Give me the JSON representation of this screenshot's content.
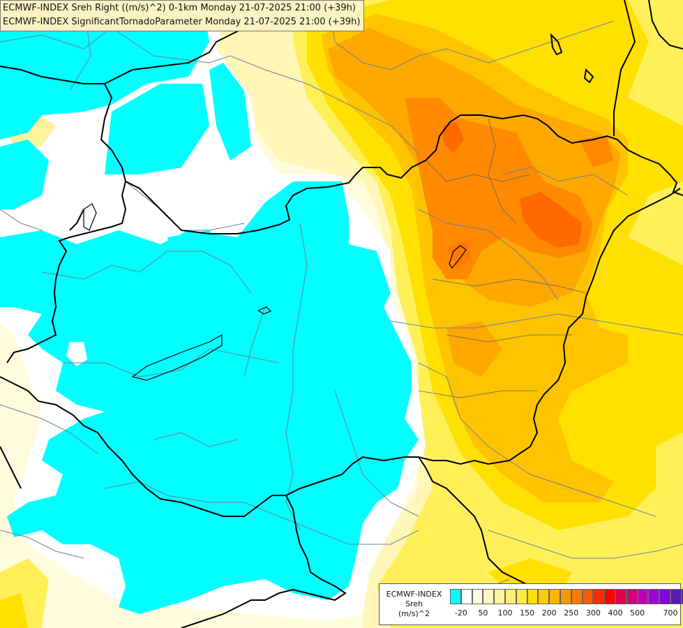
{
  "title": {
    "line1": "ECMWF-INDEX Sreh Right ((m/s)^2) 0-1km Monday 21-07-2025 21:00 (+39h)",
    "line2": "ECMWF-INDEX SignificantTornadoParameter Monday 21-07-2025 21:00 (+39h)"
  },
  "legend": {
    "source": "ECMWF-INDEX",
    "variable": "Sreh",
    "unit": "(m/s)^2",
    "colors": [
      "#00ffff",
      "#ffffff",
      "#fffbe0",
      "#fff6c0",
      "#fff3a0",
      "#fff072",
      "#ffec3c",
      "#ffe000",
      "#ffcc00",
      "#ffb400",
      "#ff9800",
      "#ff7a00",
      "#ff5a00",
      "#ff2a00",
      "#ff0000",
      "#e0004a",
      "#d0007c",
      "#c000b0",
      "#a000d8",
      "#8000e0",
      "#5a1ab4",
      "#2a1a9a",
      "#000078"
    ],
    "ticks": [
      "-20",
      "50",
      "100",
      "150",
      "200",
      "250",
      "300",
      "400",
      "500",
      "700"
    ]
  },
  "colors": {
    "cyan": "#00ffff",
    "white": "#ffffff",
    "pale": "#fffbdc",
    "lightyellow": "#fff3a6",
    "yellow": "#fff05a",
    "gold": "#ffe000",
    "amber": "#ffc400",
    "orange": "#ffa800",
    "deeporange": "#ff8a00",
    "redorange": "#ff6a00",
    "border": "#000000",
    "river": "#6f7f9a"
  }
}
